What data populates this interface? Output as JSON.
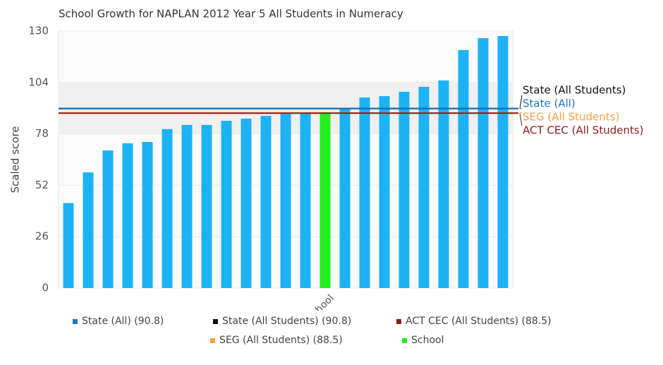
{
  "chart_data": {
    "type": "bar",
    "title": "School Growth for NAPLAN 2012 Year 5 All Students in Numeracy",
    "y_label": "Scaled score",
    "categories": [
      null,
      null,
      null,
      null,
      null,
      null,
      null,
      null,
      null,
      null,
      null,
      null,
      null,
      "School",
      null,
      null,
      null,
      null,
      null,
      null,
      null,
      null,
      null
    ],
    "values": [
      43,
      58.5,
      69.6,
      73.2,
      73.9,
      80.4,
      82.5,
      82.5,
      84.6,
      85.7,
      87.1,
      88.6,
      88.6,
      88.9,
      91,
      96.4,
      97.1,
      99.3,
      101.8,
      105,
      120.4,
      126.4,
      127.5
    ],
    "color": "#1cb3f5",
    "highlight_color": "#22ee22",
    "ylim": [
      0,
      130
    ],
    "yticks": [
      0,
      26,
      52,
      78,
      104,
      130
    ],
    "reference_lines": [
      {
        "name": "State (All Students)",
        "value": 90.8,
        "color": "#111111"
      },
      {
        "name": "State (All)",
        "value": 90.8,
        "color": "#1f74c4"
      },
      {
        "name": "SEG (All Students)",
        "value": 88.5,
        "color": "#f5a142"
      },
      {
        "name": "ACT CEC (All Students)",
        "value": 88.5,
        "color": "#8b1a1a"
      }
    ],
    "legend": [
      {
        "label": "State (All) (90.8)",
        "color": "#1f74c4"
      },
      {
        "label": "State (All Students) (90.8)",
        "color": "#111111"
      },
      {
        "label": "ACT CEC (All Students) (88.5)",
        "color": "#8b1a1a"
      },
      {
        "label": "SEG (All Students) (88.5)",
        "color": "#f5a142"
      },
      {
        "label": "School",
        "color": "#22ee22"
      }
    ]
  }
}
